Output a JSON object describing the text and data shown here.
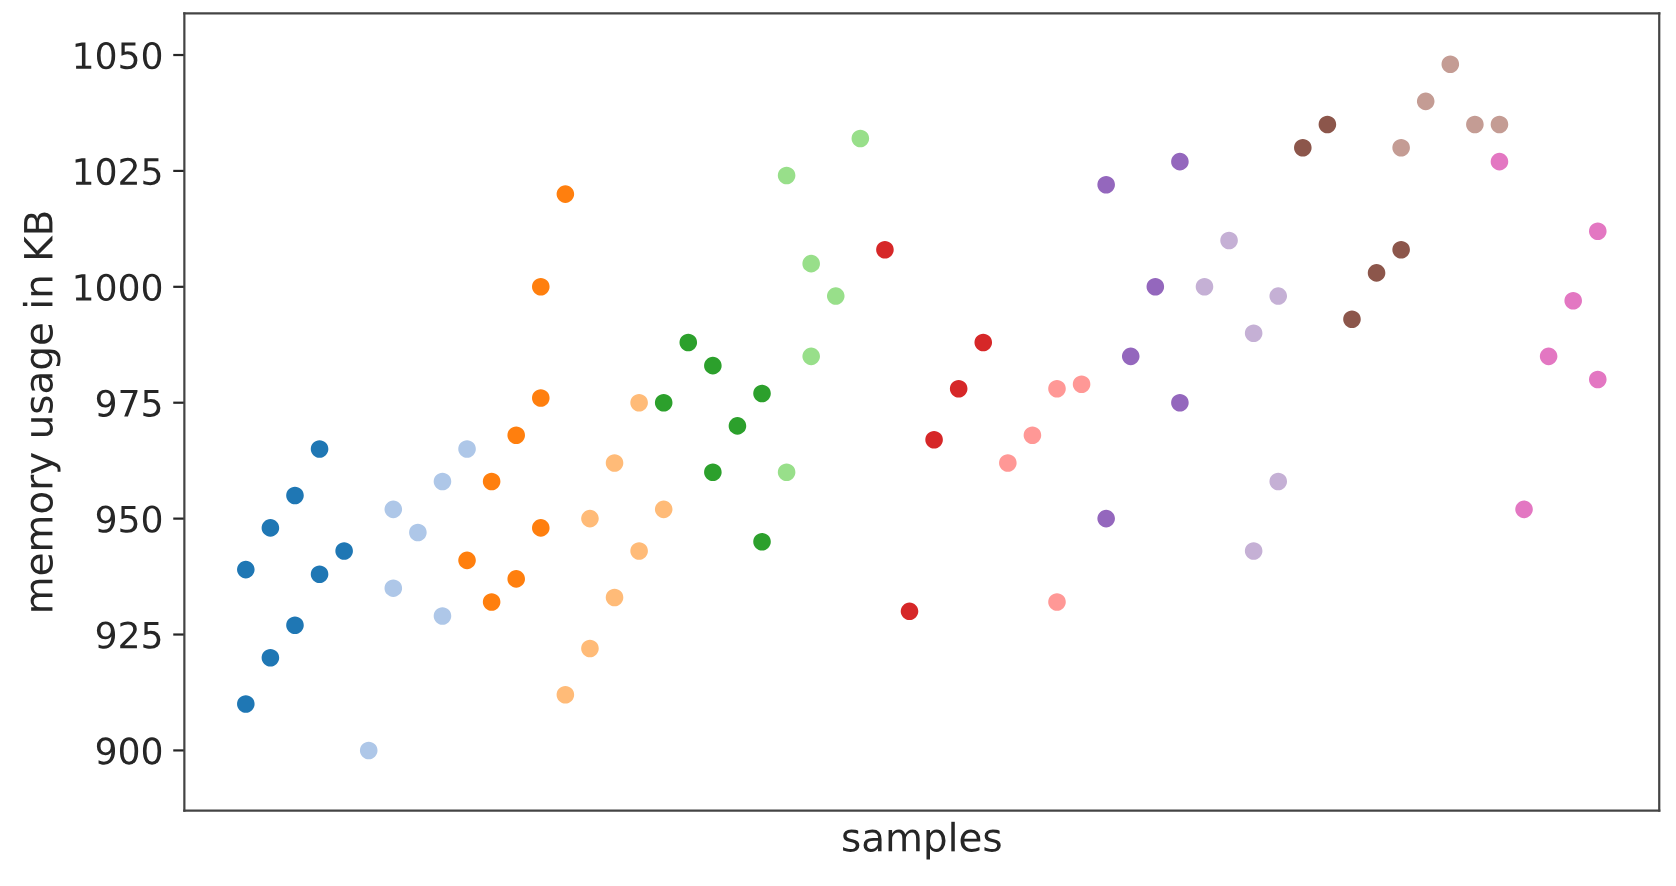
{
  "chart_data": {
    "type": "scatter",
    "xlabel": "samples",
    "ylabel": "memory usage in KB",
    "categories": [
      null,
      null,
      null,
      null,
      null,
      null,
      null,
      null,
      null,
      null,
      null,
      null,
      null,
      null,
      null,
      null,
      null,
      null,
      null,
      null,
      null,
      null,
      null,
      null,
      null,
      null,
      null,
      null,
      null,
      null,
      null,
      null,
      null,
      null,
      null,
      null,
      null,
      null,
      null,
      null,
      null,
      null,
      null,
      null,
      null,
      null,
      null,
      null,
      null,
      null,
      null,
      null,
      null,
      null,
      null,
      null,
      null,
      null,
      null,
      null
    ],
    "ylim": [
      887,
      1059
    ],
    "yticks": [
      900,
      925,
      950,
      975,
      1000,
      1025,
      1050
    ],
    "tick_labels": "y",
    "marker": "circle",
    "grid": false,
    "legend": false,
    "series": [
      {
        "color": "#1f77b4",
        "values": [
          null,
          null,
          910,
          920,
          955,
          965,
          943,
          null,
          null,
          null,
          null,
          null,
          null,
          null,
          null,
          null,
          null,
          null,
          null,
          null,
          null,
          null,
          null,
          null,
          null,
          null,
          null,
          null,
          null,
          null,
          null,
          null,
          null,
          null,
          null,
          null,
          null,
          null,
          null,
          null,
          null,
          null,
          null,
          null,
          null,
          null,
          null,
          null,
          null,
          null,
          null,
          null,
          null,
          null,
          null,
          null,
          null,
          null,
          null,
          null
        ]
      },
      {
        "color": "#1f77b4",
        "values": [
          null,
          null,
          939,
          948,
          927,
          938,
          null,
          null,
          null,
          null,
          null,
          null,
          null,
          null,
          null,
          null,
          null,
          null,
          null,
          null,
          null,
          null,
          null,
          null,
          null,
          null,
          null,
          null,
          null,
          null,
          null,
          null,
          null,
          null,
          null,
          null,
          null,
          null,
          null,
          null,
          null,
          null,
          null,
          null,
          null,
          null,
          null,
          null,
          null,
          null,
          null,
          null,
          null,
          null,
          null,
          null,
          null,
          null,
          null,
          null
        ]
      },
      {
        "color": "#aec7e8",
        "values": [
          null,
          null,
          null,
          null,
          null,
          null,
          null,
          900,
          935,
          947,
          958,
          965,
          null,
          null,
          null,
          null,
          null,
          null,
          null,
          null,
          null,
          null,
          null,
          null,
          null,
          null,
          null,
          null,
          null,
          null,
          null,
          null,
          null,
          null,
          null,
          null,
          null,
          null,
          null,
          null,
          null,
          null,
          null,
          null,
          null,
          null,
          null,
          null,
          null,
          null,
          null,
          null,
          null,
          null,
          null,
          null,
          null,
          null,
          null,
          null
        ]
      },
      {
        "color": "#aec7e8",
        "values": [
          null,
          null,
          null,
          null,
          null,
          null,
          null,
          null,
          952,
          null,
          929,
          null,
          null,
          null,
          null,
          null,
          null,
          null,
          null,
          null,
          null,
          null,
          null,
          null,
          null,
          null,
          null,
          null,
          null,
          null,
          null,
          null,
          null,
          null,
          null,
          null,
          null,
          null,
          null,
          null,
          null,
          null,
          null,
          null,
          null,
          null,
          null,
          null,
          null,
          null,
          null,
          null,
          null,
          null,
          null,
          null,
          null,
          null,
          null,
          null
        ]
      },
      {
        "color": "#ff7f0e",
        "values": [
          null,
          null,
          null,
          null,
          null,
          null,
          null,
          null,
          null,
          null,
          null,
          941,
          958,
          968,
          1000,
          1020,
          null,
          null,
          null,
          null,
          null,
          null,
          null,
          null,
          null,
          null,
          null,
          null,
          null,
          null,
          null,
          null,
          null,
          null,
          null,
          null,
          null,
          null,
          null,
          null,
          null,
          null,
          null,
          null,
          null,
          null,
          null,
          null,
          null,
          null,
          null,
          null,
          null,
          null,
          null,
          null,
          null,
          null,
          null,
          null
        ]
      },
      {
        "color": "#ff7f0e",
        "values": [
          null,
          null,
          null,
          null,
          null,
          null,
          null,
          null,
          null,
          null,
          null,
          null,
          932,
          937,
          948,
          null,
          null,
          null,
          null,
          null,
          null,
          null,
          null,
          null,
          null,
          null,
          null,
          null,
          null,
          null,
          null,
          null,
          null,
          null,
          null,
          null,
          null,
          null,
          null,
          null,
          null,
          null,
          null,
          null,
          null,
          null,
          null,
          null,
          null,
          null,
          null,
          null,
          null,
          null,
          null,
          null,
          null,
          null,
          null,
          null
        ]
      },
      {
        "color": "#ff7f0e",
        "values": [
          null,
          null,
          null,
          null,
          null,
          null,
          null,
          null,
          null,
          null,
          null,
          null,
          null,
          null,
          976,
          null,
          null,
          null,
          null,
          null,
          null,
          null,
          null,
          null,
          null,
          null,
          null,
          null,
          null,
          null,
          null,
          null,
          null,
          null,
          null,
          null,
          null,
          null,
          null,
          null,
          null,
          null,
          null,
          null,
          null,
          null,
          null,
          null,
          null,
          null,
          null,
          null,
          null,
          null,
          null,
          null,
          null,
          null,
          null,
          null
        ]
      },
      {
        "color": "#ffbb78",
        "values": [
          null,
          null,
          null,
          null,
          null,
          null,
          null,
          null,
          null,
          null,
          null,
          null,
          null,
          null,
          null,
          912,
          922,
          962,
          975,
          952,
          null,
          null,
          null,
          null,
          null,
          null,
          null,
          null,
          null,
          null,
          null,
          null,
          null,
          null,
          null,
          null,
          null,
          null,
          null,
          null,
          null,
          null,
          null,
          null,
          null,
          null,
          null,
          null,
          null,
          null,
          null,
          null,
          null,
          null,
          null,
          null,
          null,
          null,
          null,
          null
        ]
      },
      {
        "color": "#ffbb78",
        "values": [
          null,
          null,
          null,
          null,
          null,
          null,
          null,
          null,
          null,
          null,
          null,
          null,
          null,
          null,
          null,
          null,
          950,
          933,
          943,
          null,
          null,
          null,
          null,
          null,
          null,
          null,
          null,
          null,
          null,
          null,
          null,
          null,
          null,
          null,
          null,
          null,
          null,
          null,
          null,
          null,
          null,
          null,
          null,
          null,
          null,
          null,
          null,
          null,
          null,
          null,
          null,
          null,
          null,
          null,
          null,
          null,
          null,
          null,
          null,
          null
        ]
      },
      {
        "color": "#2ca02c",
        "values": [
          null,
          null,
          null,
          null,
          null,
          null,
          null,
          null,
          null,
          null,
          null,
          null,
          null,
          null,
          null,
          null,
          null,
          null,
          null,
          975,
          988,
          960,
          970,
          945,
          null,
          null,
          null,
          null,
          null,
          null,
          null,
          null,
          null,
          null,
          null,
          null,
          null,
          null,
          null,
          null,
          null,
          null,
          null,
          null,
          null,
          null,
          null,
          null,
          null,
          null,
          null,
          null,
          null,
          null,
          null,
          null,
          null,
          null,
          null,
          null
        ]
      },
      {
        "color": "#2ca02c",
        "values": [
          null,
          null,
          null,
          null,
          null,
          null,
          null,
          null,
          null,
          null,
          null,
          null,
          null,
          null,
          null,
          null,
          null,
          null,
          null,
          null,
          null,
          983,
          null,
          977,
          null,
          null,
          null,
          null,
          null,
          null,
          null,
          null,
          null,
          null,
          null,
          null,
          null,
          null,
          null,
          null,
          null,
          null,
          null,
          null,
          null,
          null,
          null,
          null,
          null,
          null,
          null,
          null,
          null,
          null,
          null,
          null,
          null,
          null,
          null,
          null
        ]
      },
      {
        "color": "#98df8a",
        "values": [
          null,
          null,
          null,
          null,
          null,
          null,
          null,
          null,
          null,
          null,
          null,
          null,
          null,
          null,
          null,
          null,
          null,
          null,
          null,
          null,
          null,
          null,
          null,
          null,
          960,
          985,
          998,
          1032,
          null,
          null,
          null,
          null,
          null,
          null,
          null,
          null,
          null,
          null,
          null,
          null,
          null,
          null,
          null,
          null,
          null,
          null,
          null,
          null,
          null,
          null,
          null,
          null,
          null,
          null,
          null,
          null,
          null,
          null,
          null,
          null
        ]
      },
      {
        "color": "#98df8a",
        "values": [
          null,
          null,
          null,
          null,
          null,
          null,
          null,
          null,
          null,
          null,
          null,
          null,
          null,
          null,
          null,
          null,
          null,
          null,
          null,
          null,
          null,
          null,
          null,
          null,
          1024,
          1005,
          null,
          null,
          null,
          null,
          null,
          null,
          null,
          null,
          null,
          null,
          null,
          null,
          null,
          null,
          null,
          null,
          null,
          null,
          null,
          null,
          null,
          null,
          null,
          null,
          null,
          null,
          null,
          null,
          null,
          null,
          null,
          null,
          null,
          null
        ]
      },
      {
        "color": "#d62728",
        "values": [
          null,
          null,
          null,
          null,
          null,
          null,
          null,
          null,
          null,
          null,
          null,
          null,
          null,
          null,
          null,
          null,
          null,
          null,
          null,
          null,
          null,
          null,
          null,
          null,
          null,
          null,
          null,
          null,
          1008,
          930,
          967,
          978,
          988,
          null,
          null,
          null,
          null,
          null,
          null,
          null,
          null,
          null,
          null,
          null,
          null,
          null,
          null,
          null,
          null,
          null,
          null,
          null,
          null,
          null,
          null,
          null,
          null,
          null,
          null,
          null
        ]
      },
      {
        "color": "#ff9896",
        "values": [
          null,
          null,
          null,
          null,
          null,
          null,
          null,
          null,
          null,
          null,
          null,
          null,
          null,
          null,
          null,
          null,
          null,
          null,
          null,
          null,
          null,
          null,
          null,
          null,
          null,
          null,
          null,
          null,
          null,
          null,
          null,
          null,
          null,
          962,
          968,
          932,
          979,
          null,
          null,
          null,
          null,
          null,
          null,
          null,
          null,
          null,
          null,
          null,
          null,
          null,
          null,
          null,
          null,
          null,
          null,
          null,
          null,
          null,
          null,
          null
        ]
      },
      {
        "color": "#ff9896",
        "values": [
          null,
          null,
          null,
          null,
          null,
          null,
          null,
          null,
          null,
          null,
          null,
          null,
          null,
          null,
          null,
          null,
          null,
          null,
          null,
          null,
          null,
          null,
          null,
          null,
          null,
          null,
          null,
          null,
          null,
          null,
          null,
          null,
          null,
          null,
          null,
          978,
          null,
          null,
          null,
          null,
          null,
          null,
          null,
          null,
          null,
          null,
          null,
          null,
          null,
          null,
          null,
          null,
          null,
          null,
          null,
          null,
          null,
          null,
          null,
          null
        ]
      },
      {
        "color": "#9467bd",
        "values": [
          null,
          null,
          null,
          null,
          null,
          null,
          null,
          null,
          null,
          null,
          null,
          null,
          null,
          null,
          null,
          null,
          null,
          null,
          null,
          null,
          null,
          null,
          null,
          null,
          null,
          null,
          null,
          null,
          null,
          null,
          null,
          null,
          null,
          null,
          null,
          null,
          null,
          950,
          985,
          1000,
          975,
          null,
          null,
          null,
          null,
          null,
          null,
          null,
          null,
          null,
          null,
          null,
          null,
          null,
          null,
          null,
          null,
          null,
          null,
          null
        ]
      },
      {
        "color": "#9467bd",
        "values": [
          null,
          null,
          null,
          null,
          null,
          null,
          null,
          null,
          null,
          null,
          null,
          null,
          null,
          null,
          null,
          null,
          null,
          null,
          null,
          null,
          null,
          null,
          null,
          null,
          null,
          null,
          null,
          null,
          null,
          null,
          null,
          null,
          null,
          null,
          null,
          null,
          null,
          1022,
          null,
          null,
          1027,
          null,
          null,
          null,
          null,
          null,
          null,
          null,
          null,
          null,
          null,
          null,
          null,
          null,
          null,
          null,
          null,
          null,
          null,
          null
        ]
      },
      {
        "color": "#c5b0d5",
        "values": [
          null,
          null,
          null,
          null,
          null,
          null,
          null,
          null,
          null,
          null,
          null,
          null,
          null,
          null,
          null,
          null,
          null,
          null,
          null,
          null,
          null,
          null,
          null,
          null,
          null,
          null,
          null,
          null,
          null,
          null,
          null,
          null,
          null,
          null,
          null,
          null,
          null,
          null,
          null,
          null,
          null,
          1000,
          1010,
          990,
          998,
          null,
          null,
          null,
          null,
          null,
          null,
          null,
          null,
          null,
          null,
          null,
          null,
          null,
          null,
          null
        ]
      },
      {
        "color": "#c5b0d5",
        "values": [
          null,
          null,
          null,
          null,
          null,
          null,
          null,
          null,
          null,
          null,
          null,
          null,
          null,
          null,
          null,
          null,
          null,
          null,
          null,
          null,
          null,
          null,
          null,
          null,
          null,
          null,
          null,
          null,
          null,
          null,
          null,
          null,
          null,
          null,
          null,
          null,
          null,
          null,
          null,
          null,
          null,
          null,
          null,
          943,
          958,
          null,
          null,
          null,
          null,
          null,
          null,
          null,
          null,
          null,
          null,
          null,
          null,
          null,
          null,
          null
        ]
      },
      {
        "color": "#8c564b",
        "values": [
          null,
          null,
          null,
          null,
          null,
          null,
          null,
          null,
          null,
          null,
          null,
          null,
          null,
          null,
          null,
          null,
          null,
          null,
          null,
          null,
          null,
          null,
          null,
          null,
          null,
          null,
          null,
          null,
          null,
          null,
          null,
          null,
          null,
          null,
          null,
          null,
          null,
          null,
          null,
          null,
          null,
          null,
          null,
          null,
          null,
          1030,
          1035,
          993,
          1003,
          1008,
          null,
          null,
          null,
          null,
          null,
          null,
          null,
          null,
          null,
          null
        ]
      },
      {
        "color": "#c49c94",
        "values": [
          null,
          null,
          null,
          null,
          null,
          null,
          null,
          null,
          null,
          null,
          null,
          null,
          null,
          null,
          null,
          null,
          null,
          null,
          null,
          null,
          null,
          null,
          null,
          null,
          null,
          null,
          null,
          null,
          null,
          null,
          null,
          null,
          null,
          null,
          null,
          null,
          null,
          null,
          null,
          null,
          null,
          null,
          null,
          null,
          null,
          null,
          null,
          null,
          null,
          1030,
          1040,
          1048,
          1035,
          1035,
          null,
          null,
          null,
          null,
          null,
          null
        ]
      },
      {
        "color": "#e377c2",
        "values": [
          null,
          null,
          null,
          null,
          null,
          null,
          null,
          null,
          null,
          null,
          null,
          null,
          null,
          null,
          null,
          null,
          null,
          null,
          null,
          null,
          null,
          null,
          null,
          null,
          null,
          null,
          null,
          null,
          null,
          null,
          null,
          null,
          null,
          null,
          null,
          null,
          null,
          null,
          null,
          null,
          null,
          null,
          null,
          null,
          null,
          null,
          null,
          null,
          null,
          null,
          null,
          null,
          null,
          1027,
          952,
          985,
          997,
          980,
          null,
          null
        ]
      },
      {
        "color": "#e377c2",
        "values": [
          null,
          null,
          null,
          null,
          null,
          null,
          null,
          null,
          null,
          null,
          null,
          null,
          null,
          null,
          null,
          null,
          null,
          null,
          null,
          null,
          null,
          null,
          null,
          null,
          null,
          null,
          null,
          null,
          null,
          null,
          null,
          null,
          null,
          null,
          null,
          null,
          null,
          null,
          null,
          null,
          null,
          null,
          null,
          null,
          null,
          null,
          null,
          null,
          null,
          null,
          null,
          null,
          null,
          null,
          null,
          null,
          null,
          1012,
          null,
          null
        ]
      }
    ]
  }
}
